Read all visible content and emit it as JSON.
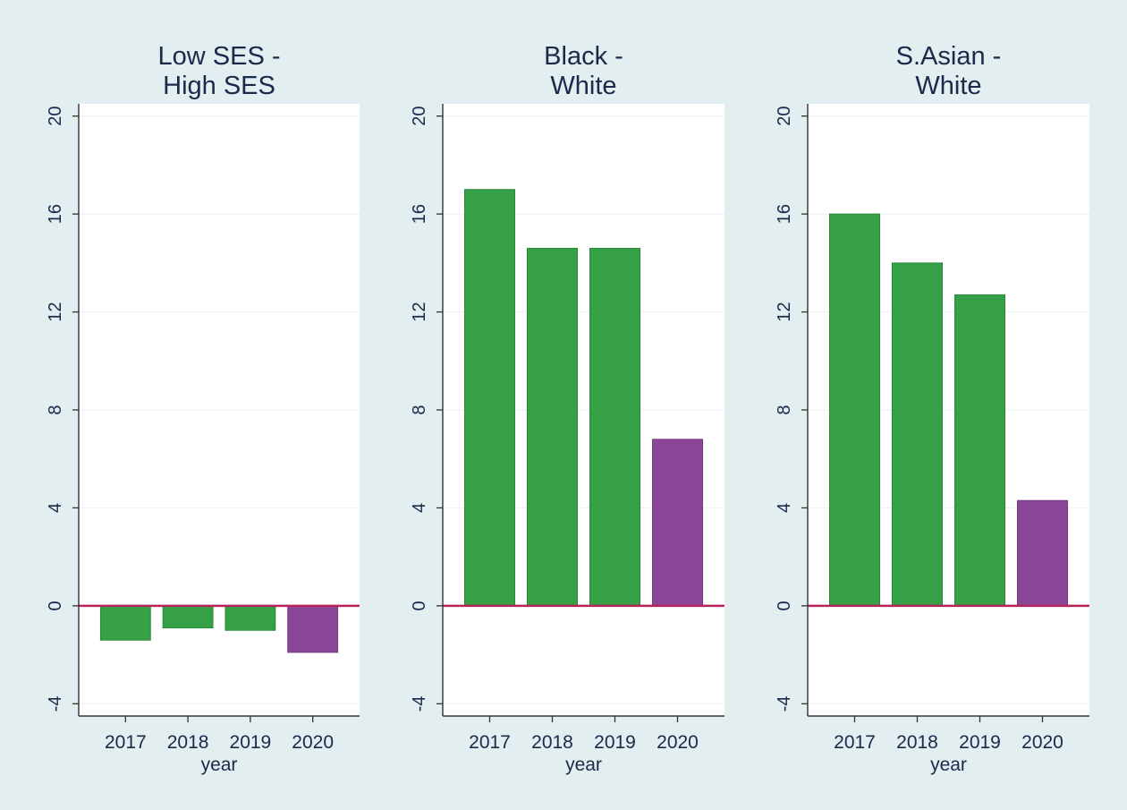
{
  "colors": {
    "background": "#e2eef0",
    "plot_background": "#ffffff",
    "pre_bar": "#35a045",
    "pre_bar_edge": "#2a8a38",
    "post_bar": "#8a4696",
    "post_bar_edge": "#733a80",
    "zero_line": "#b8245a",
    "gridline": "#eef2f3",
    "axis": "#333333",
    "text": "#1a2a4a"
  },
  "chart_data": [
    {
      "type": "bar",
      "title_lines": [
        "Low SES -",
        "High SES"
      ],
      "categories": [
        "2017",
        "2018",
        "2019",
        "2020"
      ],
      "values": [
        -1.4,
        -0.9,
        -1.0,
        -1.9
      ],
      "bar_color_keys": [
        "pre_bar",
        "pre_bar",
        "pre_bar",
        "post_bar"
      ],
      "xlabel": "year",
      "ylabel": "",
      "ylim": [
        -4.5,
        20.5
      ],
      "yticks": [
        -4,
        0,
        4,
        8,
        12,
        16,
        20
      ],
      "reference_line": 0,
      "grid": true
    },
    {
      "type": "bar",
      "title_lines": [
        "Black -",
        "White"
      ],
      "categories": [
        "2017",
        "2018",
        "2019",
        "2020"
      ],
      "values": [
        17.0,
        14.6,
        14.6,
        6.8
      ],
      "bar_color_keys": [
        "pre_bar",
        "pre_bar",
        "pre_bar",
        "post_bar"
      ],
      "xlabel": "year",
      "ylabel": "",
      "ylim": [
        -4.5,
        20.5
      ],
      "yticks": [
        -4,
        0,
        4,
        8,
        12,
        16,
        20
      ],
      "reference_line": 0,
      "grid": true
    },
    {
      "type": "bar",
      "title_lines": [
        "S.Asian -",
        "White"
      ],
      "categories": [
        "2017",
        "2018",
        "2019",
        "2020"
      ],
      "values": [
        16.0,
        14.0,
        12.7,
        4.3
      ],
      "bar_color_keys": [
        "pre_bar",
        "pre_bar",
        "pre_bar",
        "post_bar"
      ],
      "xlabel": "year",
      "ylabel": "",
      "ylim": [
        -4.5,
        20.5
      ],
      "yticks": [
        -4,
        0,
        4,
        8,
        12,
        16,
        20
      ],
      "reference_line": 0,
      "grid": true
    }
  ]
}
